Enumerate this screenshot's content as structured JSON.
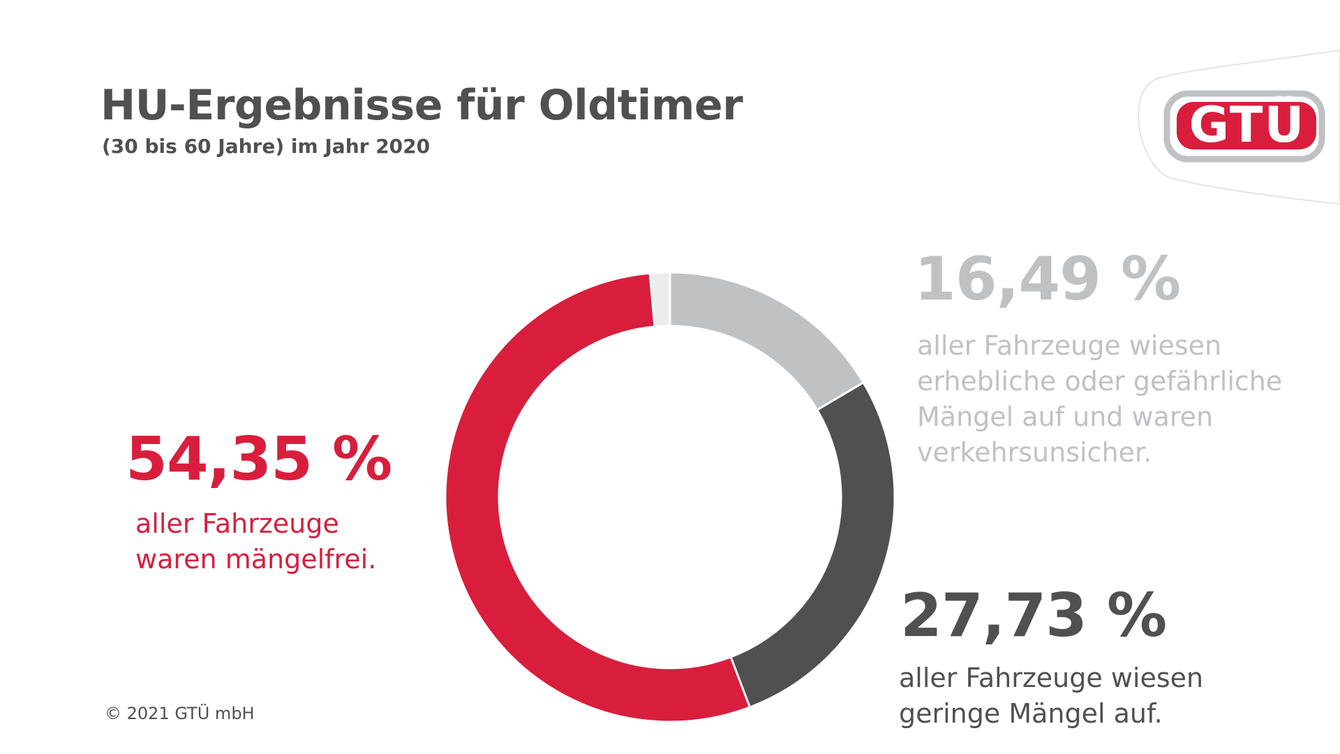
{
  "header": {
    "title": "HU-Ergebnisse für Oldtimer",
    "subtitle": "(30 bis 60 Jahre) im Jahr 2020"
  },
  "logo": {
    "text": "GTÜ"
  },
  "colors": {
    "red": "#d81e3c",
    "light_gray": "#c0c1c3",
    "dark_gray": "#505050",
    "remainder": "#ececec",
    "text": "#505050"
  },
  "chart_data": {
    "type": "pie",
    "style": "donut",
    "title": "HU-Ergebnisse für Oldtimer",
    "subtitle": "(30 bis 60 Jahre) im Jahr 2020",
    "start": "top, clockwise",
    "slices": [
      {
        "label": "16,49 %",
        "value": 16.49,
        "color": "#c0c1c3"
      },
      {
        "label": "27,73 %",
        "value": 27.73,
        "color": "#505050"
      },
      {
        "label": "54,35 %",
        "value": 54.35,
        "color": "#d81e3c"
      },
      {
        "label": "",
        "value": 1.43,
        "color": "#ececec"
      }
    ]
  },
  "annotations": {
    "mangelfrei": {
      "pct": "54,35 %",
      "line1": "aller Fahrzeuge",
      "line2": "waren mängelfrei."
    },
    "erheblich": {
      "pct": "16,49 %",
      "line1": "aller Fahrzeuge wiesen",
      "line2": "erhebliche oder gefährliche",
      "line3": "Mängel auf und waren",
      "line4": "verkehrsunsicher."
    },
    "gering": {
      "pct": "27,73 %",
      "line1": "aller Fahrzeuge wiesen",
      "line2": "geringe Mängel auf."
    }
  },
  "footer": {
    "copyright": "© 2021 GTÜ mbH"
  }
}
